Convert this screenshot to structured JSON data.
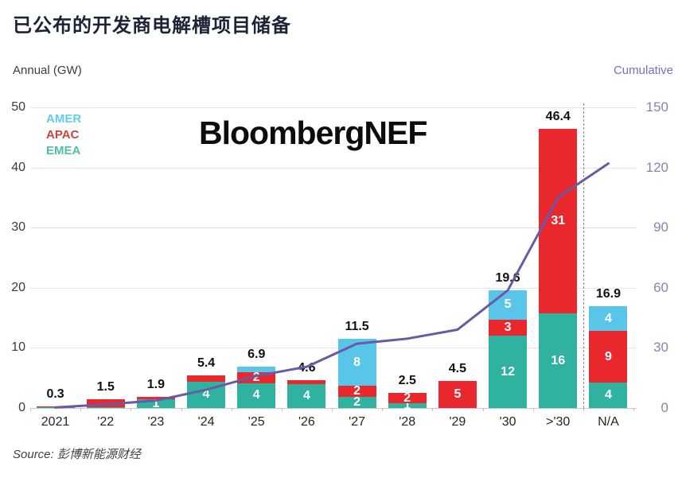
{
  "page": {
    "title": "已公布的开发商电解槽项目储备",
    "watermark": "BloombergNEF",
    "source": "Source: 彭博新能源财经"
  },
  "chart_data": {
    "type": "bar",
    "subtype": "stacked-bars-with-cumulative-line",
    "title": "已公布的开发商电解槽项目储备",
    "left_axis": {
      "label": "Annual (GW)",
      "ticks": [
        0,
        10,
        20,
        30,
        40,
        50
      ],
      "max": 50
    },
    "right_axis": {
      "label": "Cumulative",
      "ticks": [
        0,
        30,
        60,
        90,
        120,
        150
      ],
      "max": 150,
      "text_color": "#8b82ad",
      "label_color": "#7b6ec0"
    },
    "categories": [
      "2021",
      "'22",
      "'23",
      "'24",
      "'25",
      "'26",
      "'27",
      "'28",
      "'29",
      "'30",
      ">'30",
      "N/A"
    ],
    "series": [
      {
        "name": "EMEA",
        "color": "#2fb3a0",
        "values": [
          0.1,
          0.1,
          1.4,
          4.4,
          4.1,
          4.0,
          1.9,
          0.8,
          0.0,
          12.0,
          15.7,
          4.2
        ],
        "labels": [
          "",
          "",
          "1",
          "4",
          "4",
          "4",
          "2",
          "1",
          "",
          "12",
          "16",
          "4"
        ]
      },
      {
        "name": "APAC",
        "color": "#e8282d",
        "values": [
          0.2,
          1.4,
          0.5,
          1.0,
          1.9,
          0.6,
          1.8,
          1.7,
          4.5,
          2.7,
          30.7,
          8.6
        ],
        "labels": [
          "",
          "",
          "",
          "",
          "2",
          "",
          "2",
          "2",
          "5",
          "3",
          "31",
          "9"
        ]
      },
      {
        "name": "AMER",
        "color": "#59c6e9",
        "values": [
          0.0,
          0.0,
          0.0,
          0.0,
          0.9,
          0.0,
          7.8,
          0.0,
          0.0,
          4.9,
          0.0,
          4.1
        ],
        "labels": [
          "",
          "",
          "",
          "",
          "",
          "",
          "8",
          "",
          "",
          "5",
          "",
          "4"
        ]
      }
    ],
    "totals": [
      "0.3",
      "1.5",
      "1.9",
      "5.4",
      "6.9",
      "4.6",
      "11.5",
      "2.5",
      "4.5",
      "19.6",
      "46.4",
      "16.9"
    ],
    "line": {
      "name": "Cumulative",
      "color": "#6c59a5",
      "values": [
        0.3,
        1.8,
        3.7,
        9.1,
        16.0,
        20.6,
        32.1,
        34.6,
        39.1,
        58.7,
        105.1,
        122.0
      ]
    },
    "legend": [
      {
        "label": "AMER",
        "color": "#63ccec"
      },
      {
        "label": "APAC",
        "color": "#ce423c"
      },
      {
        "label": "EMEA",
        "color": "#4ec1a7"
      }
    ],
    "separator_before_category": "N/A"
  }
}
